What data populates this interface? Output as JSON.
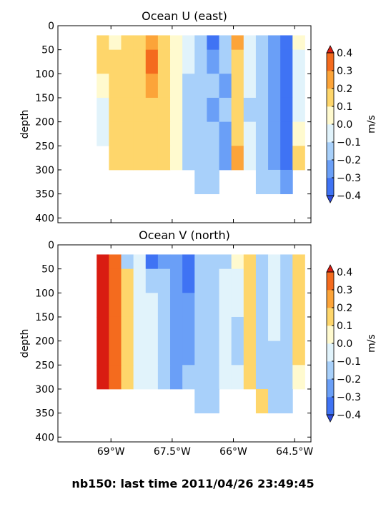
{
  "suptitle": "nb150: last time 2011/04/26 23:49:45",
  "colormap": [
    "#2f4cdf",
    "#3f73f4",
    "#6a9ff7",
    "#a8d0fa",
    "#e1f3fb",
    "#fffacf",
    "#fed66b",
    "#fca439",
    "#f46b1e",
    "#d91c12"
  ],
  "missing_color": "#ffffff",
  "chart_data": [
    {
      "type": "heatmap",
      "title": "Ocean U (east)",
      "xlabel": "",
      "ylabel": "depth",
      "xlim": [
        -70.3,
        -64.1
      ],
      "ylim": [
        410,
        0
      ],
      "y_inverted": true,
      "xticks": [
        -69,
        -67.5,
        -66,
        -64.5
      ],
      "xtick_labels": [
        "69°W",
        "67.5°W",
        "66°W",
        "64.5°W"
      ],
      "yticks": [
        0,
        50,
        100,
        150,
        200,
        250,
        300,
        350,
        400
      ],
      "colorbar": {
        "label": "m/s",
        "levels": [
          -0.4,
          -0.3,
          -0.2,
          -0.1,
          0.0,
          0.1,
          0.2,
          0.3,
          0.4
        ],
        "tick_labels": [
          "−0.4",
          "−0.3",
          "−0.2",
          "−0.1",
          "0.0",
          "0.1",
          "0.2",
          "0.3",
          "0.4"
        ],
        "extend": "both"
      },
      "x": [
        -69.2,
        -68.9,
        -68.6,
        -68.3,
        -68.0,
        -67.7,
        -67.4,
        -67.1,
        -66.8,
        -66.5,
        -66.2,
        -65.9,
        -65.6,
        -65.3,
        -65.0,
        -64.7,
        -64.4
      ],
      "depth": [
        25,
        75,
        125,
        175,
        225,
        275,
        325
      ],
      "values": [
        [
          0.15,
          0.05,
          0.15,
          0.15,
          0.25,
          0.15,
          0.05,
          -0.05,
          -0.15,
          -0.35,
          -0.15,
          0.25,
          -0.05,
          -0.15,
          -0.25,
          -0.35,
          0.05
        ],
        [
          0.15,
          0.15,
          0.15,
          0.15,
          0.35,
          0.15,
          0.05,
          -0.05,
          -0.15,
          -0.25,
          -0.15,
          0.15,
          -0.05,
          -0.15,
          -0.25,
          -0.35,
          -0.05
        ],
        [
          0.05,
          0.15,
          0.15,
          0.15,
          0.25,
          0.15,
          0.05,
          -0.15,
          -0.15,
          -0.15,
          -0.25,
          0.15,
          -0.05,
          -0.15,
          -0.25,
          -0.35,
          -0.05
        ],
        [
          -0.05,
          0.15,
          0.15,
          0.15,
          0.15,
          0.15,
          0.05,
          -0.15,
          -0.15,
          -0.25,
          -0.15,
          0.15,
          -0.15,
          -0.15,
          -0.25,
          -0.35,
          -0.05
        ],
        [
          -0.05,
          0.15,
          0.15,
          0.15,
          0.15,
          0.15,
          0.05,
          -0.15,
          -0.15,
          -0.15,
          -0.25,
          0.15,
          -0.05,
          -0.15,
          -0.25,
          -0.35,
          0.05
        ],
        [
          null,
          0.15,
          0.15,
          0.15,
          0.15,
          0.15,
          0.05,
          -0.15,
          -0.15,
          -0.15,
          -0.25,
          0.25,
          -0.05,
          -0.15,
          -0.25,
          -0.35,
          0.15
        ],
        [
          null,
          null,
          null,
          null,
          null,
          null,
          null,
          null,
          -0.15,
          -0.15,
          null,
          null,
          null,
          -0.15,
          -0.15,
          -0.25,
          null
        ]
      ]
    },
    {
      "type": "heatmap",
      "title": "Ocean V (north)",
      "xlabel": "",
      "ylabel": "depth",
      "xlim": [
        -70.3,
        -64.1
      ],
      "ylim": [
        410,
        0
      ],
      "y_inverted": true,
      "xticks": [
        -69,
        -67.5,
        -66,
        -64.5
      ],
      "xtick_labels": [
        "69°W",
        "67.5°W",
        "66°W",
        "64.5°W"
      ],
      "yticks": [
        0,
        50,
        100,
        150,
        200,
        250,
        300,
        350,
        400
      ],
      "colorbar": {
        "label": "m/s",
        "levels": [
          -0.4,
          -0.3,
          -0.2,
          -0.1,
          0.0,
          0.1,
          0.2,
          0.3,
          0.4
        ],
        "tick_labels": [
          "−0.4",
          "−0.3",
          "−0.2",
          "−0.1",
          "0.0",
          "0.1",
          "0.2",
          "0.3",
          "0.4"
        ],
        "extend": "both"
      },
      "x": [
        -69.2,
        -68.9,
        -68.6,
        -68.3,
        -68.0,
        -67.7,
        -67.4,
        -67.1,
        -66.8,
        -66.5,
        -66.2,
        -65.9,
        -65.6,
        -65.3,
        -65.0,
        -64.7,
        -64.4
      ],
      "depth": [
        25,
        75,
        125,
        175,
        225,
        275,
        325
      ],
      "values": [
        [
          0.45,
          0.35,
          -0.15,
          -0.05,
          -0.35,
          -0.25,
          -0.25,
          -0.35,
          -0.15,
          -0.15,
          -0.15,
          0.05,
          0.15,
          -0.15,
          -0.05,
          -0.15,
          0.15
        ],
        [
          0.45,
          0.35,
          0.15,
          -0.05,
          -0.15,
          -0.15,
          -0.25,
          -0.35,
          -0.15,
          -0.15,
          -0.05,
          -0.05,
          0.15,
          -0.15,
          -0.05,
          -0.15,
          0.15
        ],
        [
          0.45,
          0.35,
          0.15,
          -0.05,
          -0.05,
          -0.15,
          -0.25,
          -0.25,
          -0.15,
          -0.15,
          -0.05,
          -0.05,
          0.15,
          -0.15,
          -0.05,
          -0.15,
          0.15
        ],
        [
          0.45,
          0.35,
          0.15,
          -0.05,
          -0.05,
          -0.15,
          -0.25,
          -0.25,
          -0.15,
          -0.15,
          -0.05,
          -0.15,
          0.15,
          -0.15,
          -0.05,
          -0.15,
          0.15
        ],
        [
          0.45,
          0.35,
          0.15,
          -0.05,
          -0.05,
          -0.15,
          -0.25,
          -0.25,
          -0.15,
          -0.15,
          -0.05,
          -0.15,
          0.15,
          -0.15,
          -0.15,
          -0.15,
          0.15
        ],
        [
          0.45,
          0.35,
          0.15,
          -0.05,
          -0.05,
          -0.15,
          -0.25,
          -0.15,
          -0.15,
          -0.15,
          -0.05,
          -0.05,
          0.15,
          -0.15,
          -0.15,
          -0.15,
          0.05
        ],
        [
          null,
          null,
          null,
          null,
          null,
          null,
          null,
          null,
          -0.15,
          -0.15,
          null,
          null,
          null,
          0.15,
          -0.15,
          -0.15,
          null
        ]
      ]
    }
  ]
}
